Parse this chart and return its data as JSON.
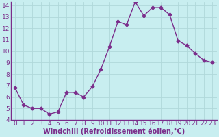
{
  "x": [
    0,
    1,
    2,
    3,
    4,
    5,
    6,
    7,
    8,
    9,
    10,
    11,
    12,
    13,
    14,
    15,
    16,
    17,
    18,
    19,
    20,
    21,
    22,
    23
  ],
  "y": [
    6.8,
    5.3,
    5.0,
    5.0,
    4.5,
    4.7,
    6.4,
    6.4,
    6.0,
    6.9,
    8.4,
    10.4,
    12.6,
    12.3,
    14.3,
    13.1,
    13.8,
    13.8,
    13.2,
    10.9,
    10.5,
    9.8,
    9.2,
    9.0
  ],
  "line_color": "#7b2d8b",
  "marker": "D",
  "marker_size": 2.5,
  "bg_color": "#c8eef0",
  "grid_color": "#b0d8da",
  "xlabel": "Windchill (Refroidissement éolien,°C)",
  "xlabel_color": "#7b2d8b",
  "tick_color": "#7b2d8b",
  "axis_color": "#7b2d8b",
  "ylim": [
    4,
    14
  ],
  "xlim": [
    -0.5,
    23.5
  ],
  "yticks": [
    4,
    5,
    6,
    7,
    8,
    9,
    10,
    11,
    12,
    13,
    14
  ],
  "xticks": [
    0,
    1,
    2,
    3,
    4,
    5,
    6,
    7,
    8,
    9,
    10,
    11,
    12,
    13,
    14,
    15,
    16,
    17,
    18,
    19,
    20,
    21,
    22,
    23
  ],
  "linewidth": 1.0,
  "font_size": 6.5
}
